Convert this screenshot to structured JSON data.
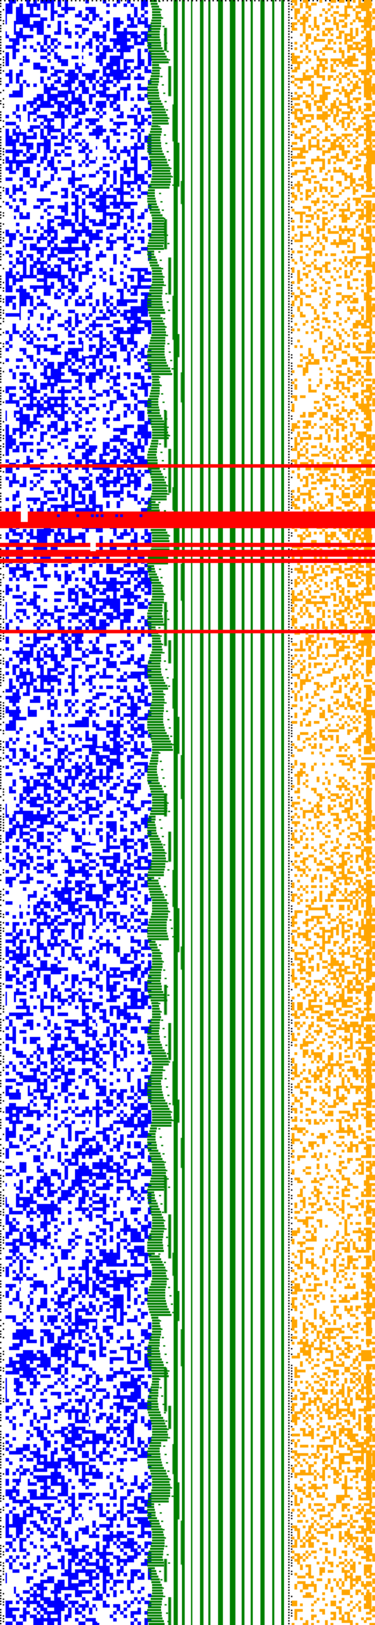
{
  "title": "",
  "colors": {
    "background": "#ffffff",
    "left_pattern": "#0000ff",
    "middle_pattern": "#008000",
    "right_pattern": "#ffa500",
    "separator": "#000000",
    "highlight": "#ff0000"
  },
  "panels": [
    {
      "name": "left-pattern-panel",
      "color_key": "left_pattern"
    },
    {
      "name": "middle-pattern-panel",
      "color_key": "middle_pattern"
    },
    {
      "name": "right-pattern-panel",
      "color_key": "right_pattern"
    }
  ],
  "separators": [
    {
      "name": "left-edge-separator"
    },
    {
      "name": "center-separator"
    },
    {
      "name": "top-border-separator"
    }
  ],
  "highlight_rows": [
    {
      "name": "highlight-row-1"
    },
    {
      "name": "highlight-row-2"
    },
    {
      "name": "highlight-row-3"
    },
    {
      "name": "highlight-row-4"
    },
    {
      "name": "highlight-row-5"
    },
    {
      "name": "highlight-row-6"
    }
  ]
}
